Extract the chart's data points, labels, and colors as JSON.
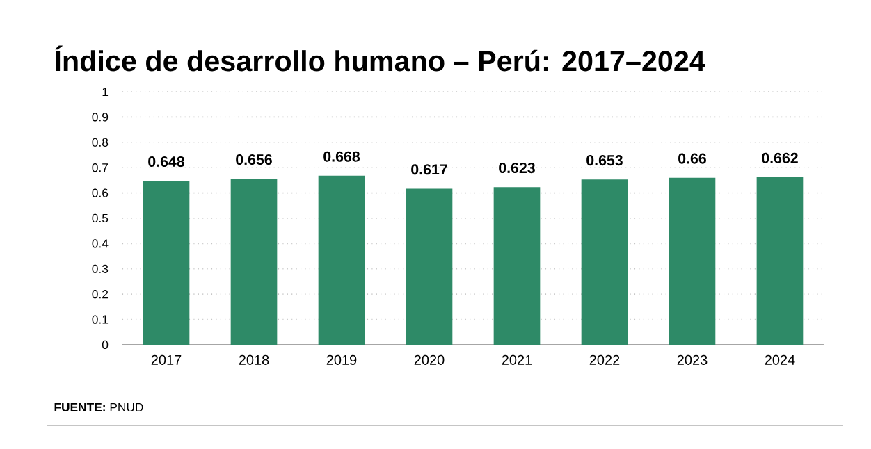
{
  "chart_data": {
    "type": "bar",
    "title": "Índice de desarrollo humano – Perú: 2017–2024",
    "categories": [
      "2017",
      "2018",
      "2019",
      "2020",
      "2021",
      "2022",
      "2023",
      "2024"
    ],
    "values": [
      0.648,
      0.656,
      0.668,
      0.617,
      0.623,
      0.653,
      0.66,
      0.662
    ],
    "color": "#2e8a67",
    "ylim": [
      0,
      1
    ],
    "yticks": [
      0,
      0.1,
      0.2,
      0.3,
      0.4,
      0.5,
      0.6,
      0.7,
      0.8,
      0.9,
      1
    ],
    "grid": "y",
    "data_labels": true,
    "annotations": [
      "**FUENTE:** PNUD"
    ]
  }
}
